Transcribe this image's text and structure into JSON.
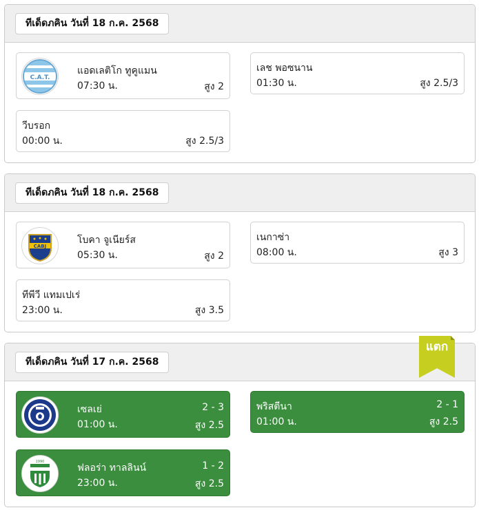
{
  "colors": {
    "win_green": "#3b8e3e",
    "ribbon_yellow": "#c6cf1f",
    "header_gray": "#efefef"
  },
  "sections": [
    {
      "date": "ทีเด็ดภคิน วันที่ 18 ก.ค. 2568",
      "matches": [
        {
          "team": "แอดเลติโก ทูคูแมน",
          "time": "07:30 น.",
          "odds": "สูง 2",
          "logo": "atletico-tucuman-logo"
        },
        {
          "team": "เลช พอซนาน",
          "time": "01:30 น.",
          "odds": "สูง 2.5/3"
        },
        {
          "team": "วีบรอก",
          "time": "00:00 น.",
          "odds": "สูง 2.5/3"
        }
      ]
    },
    {
      "date": "ทีเด็ดภคิน วันที่ 18 ก.ค. 2568",
      "matches": [
        {
          "team": "โบคา จูเนียร์ส",
          "time": "05:30 น.",
          "odds": "สูง 2",
          "logo": "boca-juniors-logo"
        },
        {
          "team": "เนกาซ่า",
          "time": "08:00 น.",
          "odds": "สูง 3"
        },
        {
          "team": "ทีพีวี แทมเปเร่",
          "time": "23:00 น.",
          "odds": "สูง 3.5"
        }
      ]
    },
    {
      "date": "ทีเด็ดภคิน วันที่ 17 ก.ค. 2568",
      "badge": "แตก",
      "matches": [
        {
          "team": "เซลเย่",
          "time": "01:00 น.",
          "score": "2 - 3",
          "odds": "สูง 2.5",
          "logo": "celje-logo"
        },
        {
          "team": "พริสตีนา",
          "time": "01:00 น.",
          "score": "2 - 1",
          "odds": "สูง 2.5"
        },
        {
          "team": "ฟลอร่า ทาลลินน์",
          "time": "23:00 น.",
          "score": "1 - 2",
          "odds": "สูง 2.5",
          "logo": "flora-tallinn-logo"
        }
      ]
    }
  ]
}
